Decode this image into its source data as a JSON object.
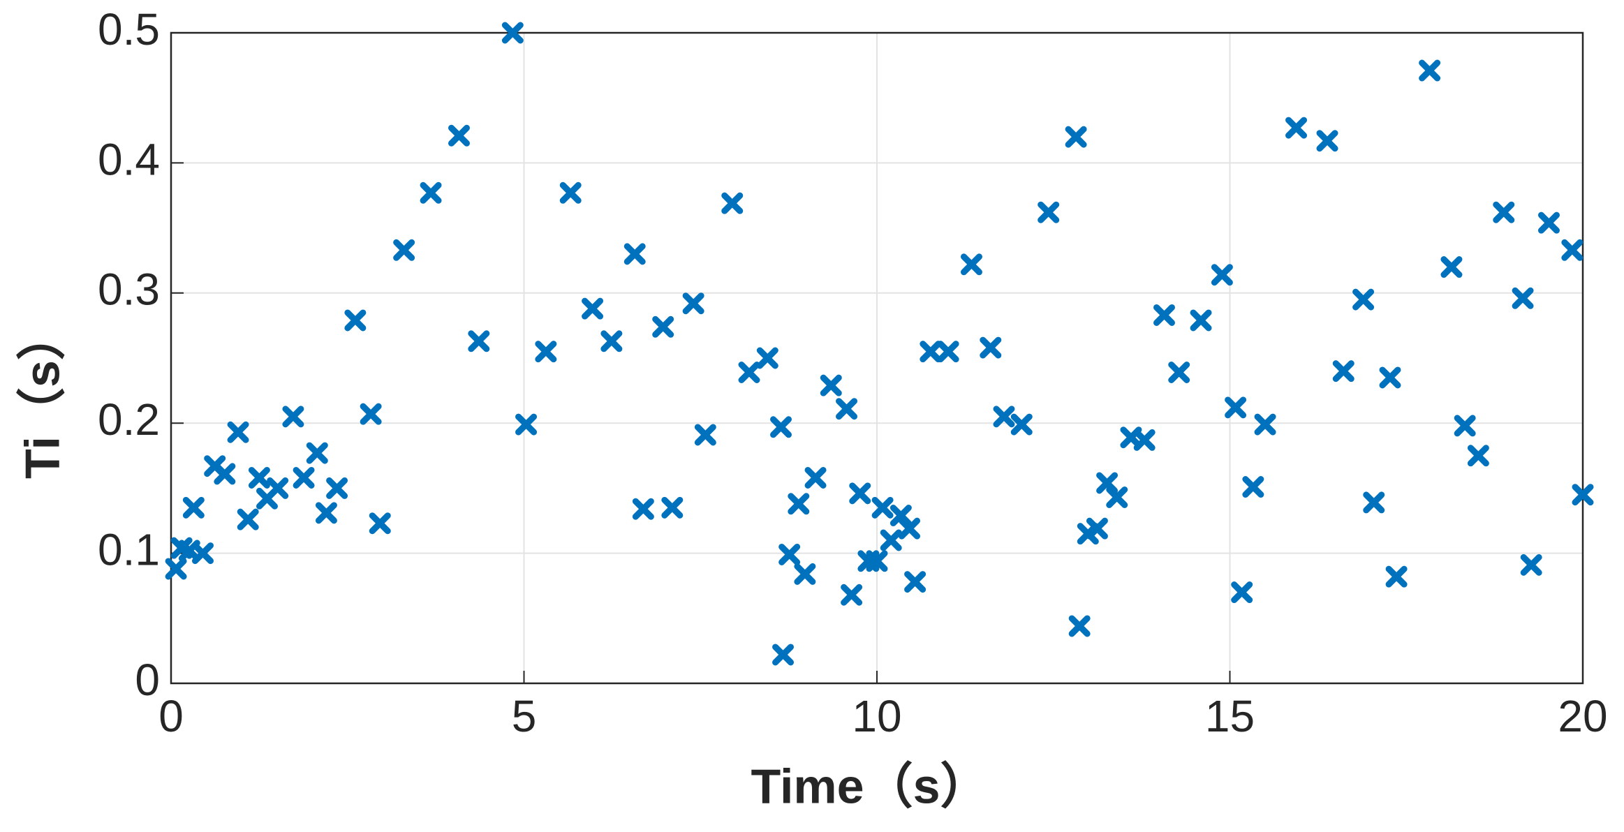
{
  "chart_data": {
    "type": "scatter",
    "xlabel": "Time（s）",
    "ylabel": "Ti（s）",
    "xlim": [
      0,
      20
    ],
    "xticks": [
      0,
      5,
      10,
      15,
      20
    ],
    "ylim": [
      0,
      0.5
    ],
    "yticks": [
      0,
      0.1,
      0.2,
      0.3,
      0.4,
      0.5
    ],
    "grid": true,
    "marker": "x",
    "color": "#0072bd",
    "x": [
      0.07,
      0.15,
      0.26,
      0.32,
      0.45,
      0.62,
      0.76,
      0.95,
      1.09,
      1.25,
      1.36,
      1.51,
      1.73,
      1.88,
      2.07,
      2.2,
      2.35,
      2.61,
      2.83,
      2.96,
      3.3,
      3.68,
      4.08,
      4.36,
      4.84,
      5.03,
      5.31,
      5.66,
      5.97,
      6.24,
      6.57,
      6.69,
      6.97,
      7.1,
      7.4,
      7.57,
      7.95,
      8.19,
      8.45,
      8.64,
      8.67,
      8.76,
      8.89,
      8.98,
      9.13,
      9.35,
      9.57,
      9.64,
      9.76,
      9.88,
      10.0,
      10.08,
      10.2,
      10.34,
      10.46,
      10.54,
      10.76,
      11.01,
      11.34,
      11.61,
      11.8,
      12.05,
      12.43,
      12.82,
      12.87,
      12.99,
      13.12,
      13.26,
      13.4,
      13.6,
      13.79,
      14.07,
      14.28,
      14.59,
      14.89,
      15.08,
      15.17,
      15.33,
      15.5,
      15.94,
      16.38,
      16.61,
      16.89,
      17.04,
      17.27,
      17.36,
      17.83,
      18.14,
      18.33,
      18.52,
      18.88,
      19.15,
      19.27,
      19.52,
      19.85,
      20.0
    ],
    "values": [
      0.088,
      0.104,
      0.102,
      0.135,
      0.1,
      0.167,
      0.161,
      0.193,
      0.126,
      0.158,
      0.142,
      0.15,
      0.205,
      0.158,
      0.177,
      0.131,
      0.15,
      0.279,
      0.207,
      0.123,
      0.333,
      0.377,
      0.421,
      0.263,
      0.5,
      0.199,
      0.255,
      0.377,
      0.288,
      0.263,
      0.33,
      0.134,
      0.274,
      0.135,
      0.292,
      0.191,
      0.369,
      0.239,
      0.25,
      0.197,
      0.022,
      0.099,
      0.138,
      0.084,
      0.158,
      0.229,
      0.211,
      0.068,
      0.146,
      0.094,
      0.094,
      0.135,
      0.11,
      0.129,
      0.119,
      0.078,
      0.255,
      0.255,
      0.322,
      0.258,
      0.205,
      0.199,
      0.362,
      0.42,
      0.044,
      0.115,
      0.119,
      0.154,
      0.143,
      0.189,
      0.187,
      0.283,
      0.239,
      0.279,
      0.314,
      0.212,
      0.07,
      0.151,
      0.199,
      0.427,
      0.417,
      0.24,
      0.295,
      0.139,
      0.235,
      0.082,
      0.471,
      0.32,
      0.198,
      0.175,
      0.362,
      0.296,
      0.091,
      0.354,
      0.333,
      0.145
    ]
  }
}
